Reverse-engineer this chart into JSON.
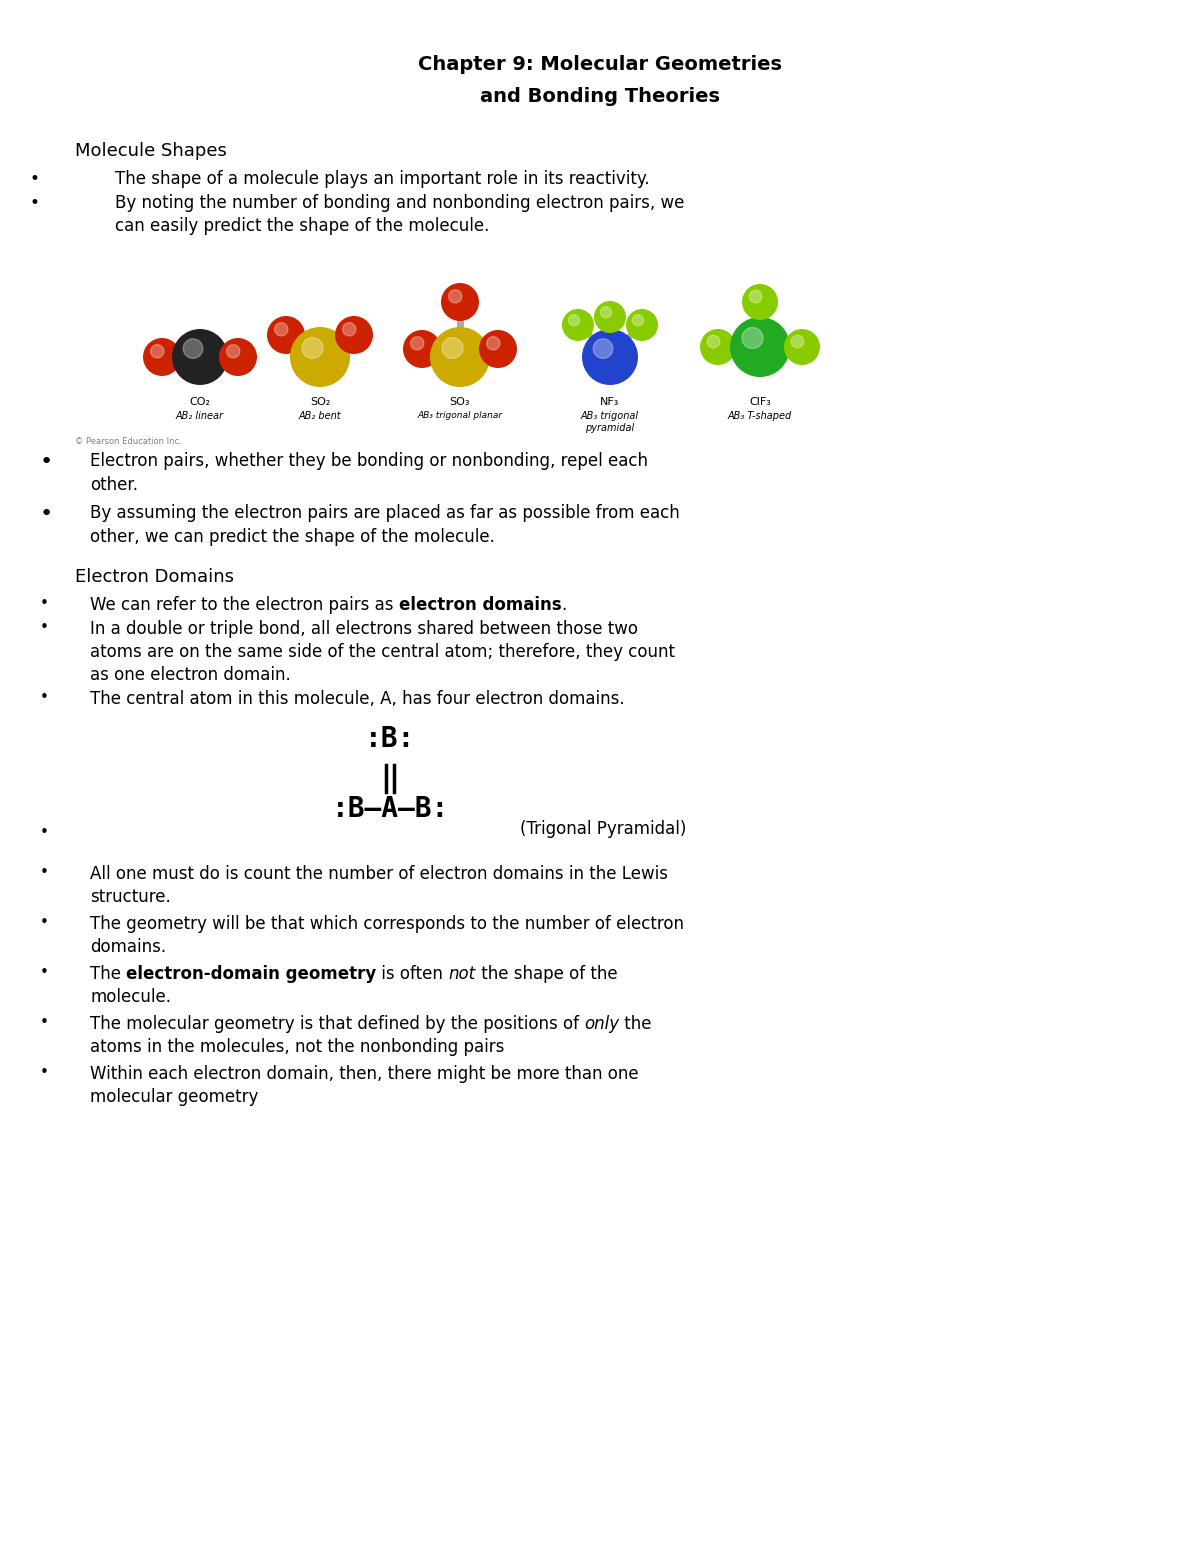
{
  "title_line1": "Chapter 9: Molecular Geometries",
  "title_line2": "and Bonding Theories",
  "bg_color": "#ffffff",
  "text_color": "#000000",
  "title_fontsize": 14,
  "body_fontsize": 12,
  "section_fontsize": 13,
  "small_bullet_fontsize": 11,
  "section1_header": "Molecule Shapes",
  "section1_b1": "The shape of a molecule plays an important role in its reactivity.",
  "section1_b2_l1": "By noting the number of bonding and nonbonding electron pairs, we",
  "section1_b2_l2": "can easily predict the shape of the molecule.",
  "section1_b3_l1": "Electron pairs, whether they be bonding or nonbonding, repel each",
  "section1_b3_l2": "other.",
  "section1_b4_l1": "By assuming the electron pairs are placed as far as possible from each",
  "section1_b4_l2": "other, we can predict the shape of the molecule.",
  "section2_header": "Electron Domains",
  "section2_b1_pre": "We can refer to the electron pairs as ",
  "section2_b1_bold": "electron domains",
  "section2_b1_post": ".",
  "section2_b2_l1": "In a double or triple bond, all electrons shared between those two",
  "section2_b2_l2": "atoms are on the same side of the central atom; therefore, they count",
  "section2_b2_l3": "as one electron domain.",
  "section2_b3": "The central atom in this molecule, A, has four electron domains.",
  "lewis_b_top": ":B:",
  "lewis_b_mid": ":B—A—B:",
  "lewis_caption": "(Trigonal Pyramidal)",
  "section2_b4_l1": "All one must do is count the number of electron domains in the Lewis",
  "section2_b4_l2": "structure.",
  "section2_b5_l1": "The geometry will be that which corresponds to the number of electron",
  "section2_b5_l2": "domains.",
  "section2_b6_pre": "The ",
  "section2_b6_bold": "electron-domain geometry",
  "section2_b6_mid": " is often ",
  "section2_b6_italic": "not",
  "section2_b6_post": " the shape of the",
  "section2_b6_l2": "molecule.",
  "section2_b7_pre": "The molecular geometry is that defined by the positions of ",
  "section2_b7_italic": "only",
  "section2_b7_post": " the",
  "section2_b7_l2": "atoms in the molecules, not the nonbonding pairs",
  "section2_b8_l1": "Within each electron domain, then, there might be more than one",
  "section2_b8_l2": "molecular geometry",
  "copyright": "© Pearson Education Inc.",
  "mol_colors": {
    "red": "#cc2200",
    "black": "#222222",
    "yellow": "#ccaa00",
    "blue": "#2244cc",
    "green_light": "#88cc00",
    "green_dark": "#22aa22",
    "gray_bond": "#aaaaaa"
  }
}
